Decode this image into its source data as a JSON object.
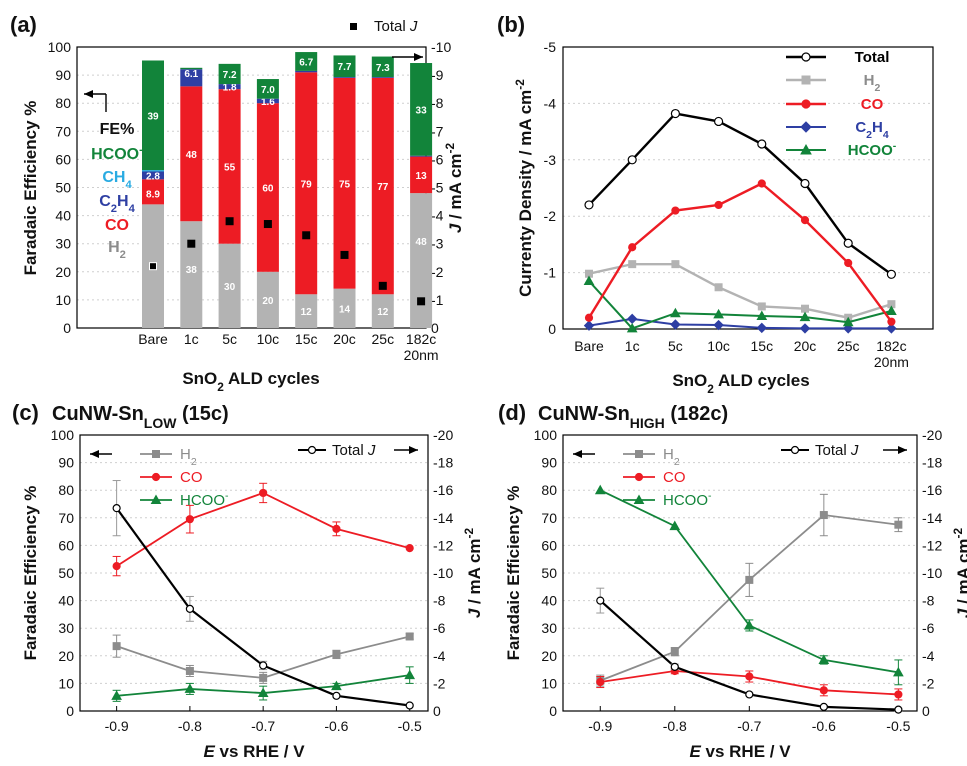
{
  "colors": {
    "H2": "#b3b3b3",
    "H2line": "#8c8c8c",
    "CO": "#ed1c24",
    "C2H4": "#2e3fa3",
    "CH4": "#29abe2",
    "HCOO": "#12843a",
    "Total": "#000000"
  },
  "chart_data": [
    {
      "panel": "(a)",
      "type": "bar",
      "stacked": true,
      "xlabel": "SnO2 ALD cycles",
      "ylabel": "Faradaic Efficiency %",
      "y2label": "J / mA cm-2",
      "ylim": [
        0,
        100
      ],
      "y2lim": [
        0,
        -10
      ],
      "categories": [
        "Bare",
        "1c",
        "5c",
        "10c",
        "15c",
        "20c",
        "25c",
        "182c\n20nm"
      ],
      "series": [
        {
          "name": "H2",
          "values": [
            44,
            38,
            30,
            20,
            12,
            14,
            12,
            48
          ],
          "labels": [
            "",
            "38",
            "30",
            "20",
            "12",
            "14",
            "12",
            "48"
          ]
        },
        {
          "name": "CO",
          "values": [
            8.9,
            48,
            55,
            60,
            79,
            75,
            77,
            13
          ],
          "labels": [
            "8.9",
            "48",
            "55",
            "60",
            "79",
            "75",
            "77",
            "13"
          ]
        },
        {
          "name": "C2H4",
          "values": [
            2.8,
            6.1,
            1.8,
            1.6,
            0.5,
            0.3,
            0.3,
            0.3
          ],
          "labels": [
            "2.8",
            "6.1",
            "1.8",
            "1.6",
            "",
            "",
            "",
            ""
          ]
        },
        {
          "name": "CH4",
          "values": [
            0.5,
            0,
            0,
            0,
            0,
            0,
            0,
            0
          ],
          "labels": [
            "",
            "",
            "",
            "",
            "",
            "",
            "",
            ""
          ]
        },
        {
          "name": "HCOO-",
          "values": [
            39,
            0.5,
            7.2,
            7.0,
            6.7,
            7.7,
            7.3,
            33
          ],
          "labels": [
            "39",
            "",
            "7.2",
            "7.0",
            "6.7",
            "7.7",
            "7.3",
            "33"
          ]
        }
      ],
      "total_j": {
        "name": "Total J",
        "values": [
          -2.2,
          -3.0,
          -3.8,
          -3.7,
          -3.3,
          -2.6,
          -1.5,
          -0.95
        ]
      },
      "legend_left": {
        "header": "FE%",
        "items": [
          "HCOO-",
          "CH4",
          "C2H4",
          "CO",
          "H2"
        ]
      }
    },
    {
      "panel": "(b)",
      "type": "line",
      "xlabel": "SnO2 ALD cycles",
      "ylabel": "Currenty Density / mA cm-2",
      "ylim": [
        0,
        -5
      ],
      "categories": [
        "Bare",
        "1c",
        "5c",
        "10c",
        "15c",
        "20c",
        "25c",
        "182c\n20nm"
      ],
      "series": [
        {
          "name": "Total",
          "values": [
            -2.2,
            -3.0,
            -3.82,
            -3.68,
            -3.28,
            -2.58,
            -1.52,
            -0.97
          ]
        },
        {
          "name": "H2",
          "values": [
            -0.98,
            -1.15,
            -1.15,
            -0.74,
            -0.4,
            -0.36,
            -0.2,
            -0.44
          ]
        },
        {
          "name": "CO",
          "values": [
            -0.2,
            -1.45,
            -2.1,
            -2.2,
            -2.58,
            -1.93,
            -1.17,
            -0.13
          ]
        },
        {
          "name": "C2H4",
          "values": [
            -0.06,
            -0.18,
            -0.08,
            -0.07,
            -0.02,
            -0.01,
            -0.01,
            -0.01
          ]
        },
        {
          "name": "HCOO-",
          "values": [
            -0.85,
            -0.01,
            -0.28,
            -0.26,
            -0.23,
            -0.21,
            -0.12,
            -0.32
          ]
        }
      ],
      "legend": {
        "position": "top-right",
        "items": [
          "Total",
          "H2",
          "CO",
          "C2H4",
          "HCOO-"
        ]
      }
    },
    {
      "panel": "(c)",
      "title": "CuNW-Sn",
      "title_sub": "LOW",
      "title_suffix": "(15c)",
      "type": "line",
      "xlabel_italic": "E",
      "xlabel_rest": "vs RHE /  V",
      "ylabel": "Faradaic Efficiency %",
      "y2label": "J / mA cm-2",
      "x": [
        -0.9,
        -0.8,
        -0.7,
        -0.6,
        -0.5
      ],
      "xlim": [
        -0.95,
        -0.475
      ],
      "ylim": [
        0,
        100
      ],
      "y2lim": [
        0,
        -20
      ],
      "series": [
        {
          "name": "H2",
          "axis": "left",
          "values": [
            23.5,
            14.5,
            12,
            20.5,
            27
          ],
          "err": [
            4,
            2,
            2,
            1.5,
            1
          ]
        },
        {
          "name": "CO",
          "axis": "left",
          "values": [
            52.5,
            69.5,
            79,
            66,
            59
          ],
          "err": [
            3.5,
            5,
            3.5,
            2.5,
            0
          ]
        },
        {
          "name": "HCOO-",
          "axis": "left",
          "values": [
            5.5,
            8,
            6.5,
            9,
            13
          ],
          "err": [
            2,
            2,
            2.5,
            1,
            3
          ]
        },
        {
          "name": "Total J",
          "axis": "right",
          "values": [
            -14.7,
            -7.4,
            -3.3,
            -1.1,
            -0.4
          ],
          "err": [
            2,
            0.9,
            0.3,
            0.1,
            0.1
          ]
        }
      ],
      "legend": {
        "items": [
          "H2",
          "CO",
          "HCOO-"
        ],
        "total_label": "Total J"
      }
    },
    {
      "panel": "(d)",
      "title": "CuNW-Sn",
      "title_sub": "HIGH",
      "title_suffix": "(182c)",
      "type": "line",
      "xlabel_italic": "E",
      "xlabel_rest": "vs RHE /  V",
      "ylabel": "Faradaic Efficiency %",
      "y2label": "J / mA cm-2",
      "x": [
        -0.9,
        -0.8,
        -0.7,
        -0.6,
        -0.5
      ],
      "xlim": [
        -0.95,
        -0.475
      ],
      "ylim": [
        0,
        100
      ],
      "y2lim": [
        0,
        -20
      ],
      "series": [
        {
          "name": "H2",
          "axis": "left",
          "values": [
            11,
            21.5,
            47.5,
            71,
            67.5
          ],
          "err": [
            2,
            1.5,
            6,
            7.5,
            2.5
          ]
        },
        {
          "name": "CO",
          "axis": "left",
          "values": [
            10.5,
            14.5,
            12.5,
            7.5,
            6
          ],
          "err": [
            2,
            1,
            2,
            2,
            2
          ]
        },
        {
          "name": "HCOO-",
          "axis": "left",
          "values": [
            80,
            67,
            31,
            18.5,
            14
          ],
          "err": [
            0,
            0,
            2,
            1.5,
            4.5
          ]
        },
        {
          "name": "Total J",
          "axis": "right",
          "values": [
            -8,
            -3.2,
            -1.2,
            -0.3,
            -0.1
          ],
          "err": [
            0.9,
            0.2,
            0.1,
            0.1,
            0.1
          ]
        }
      ],
      "legend": {
        "items": [
          "H2",
          "CO",
          "HCOO-"
        ],
        "total_label": "Total J"
      }
    }
  ]
}
